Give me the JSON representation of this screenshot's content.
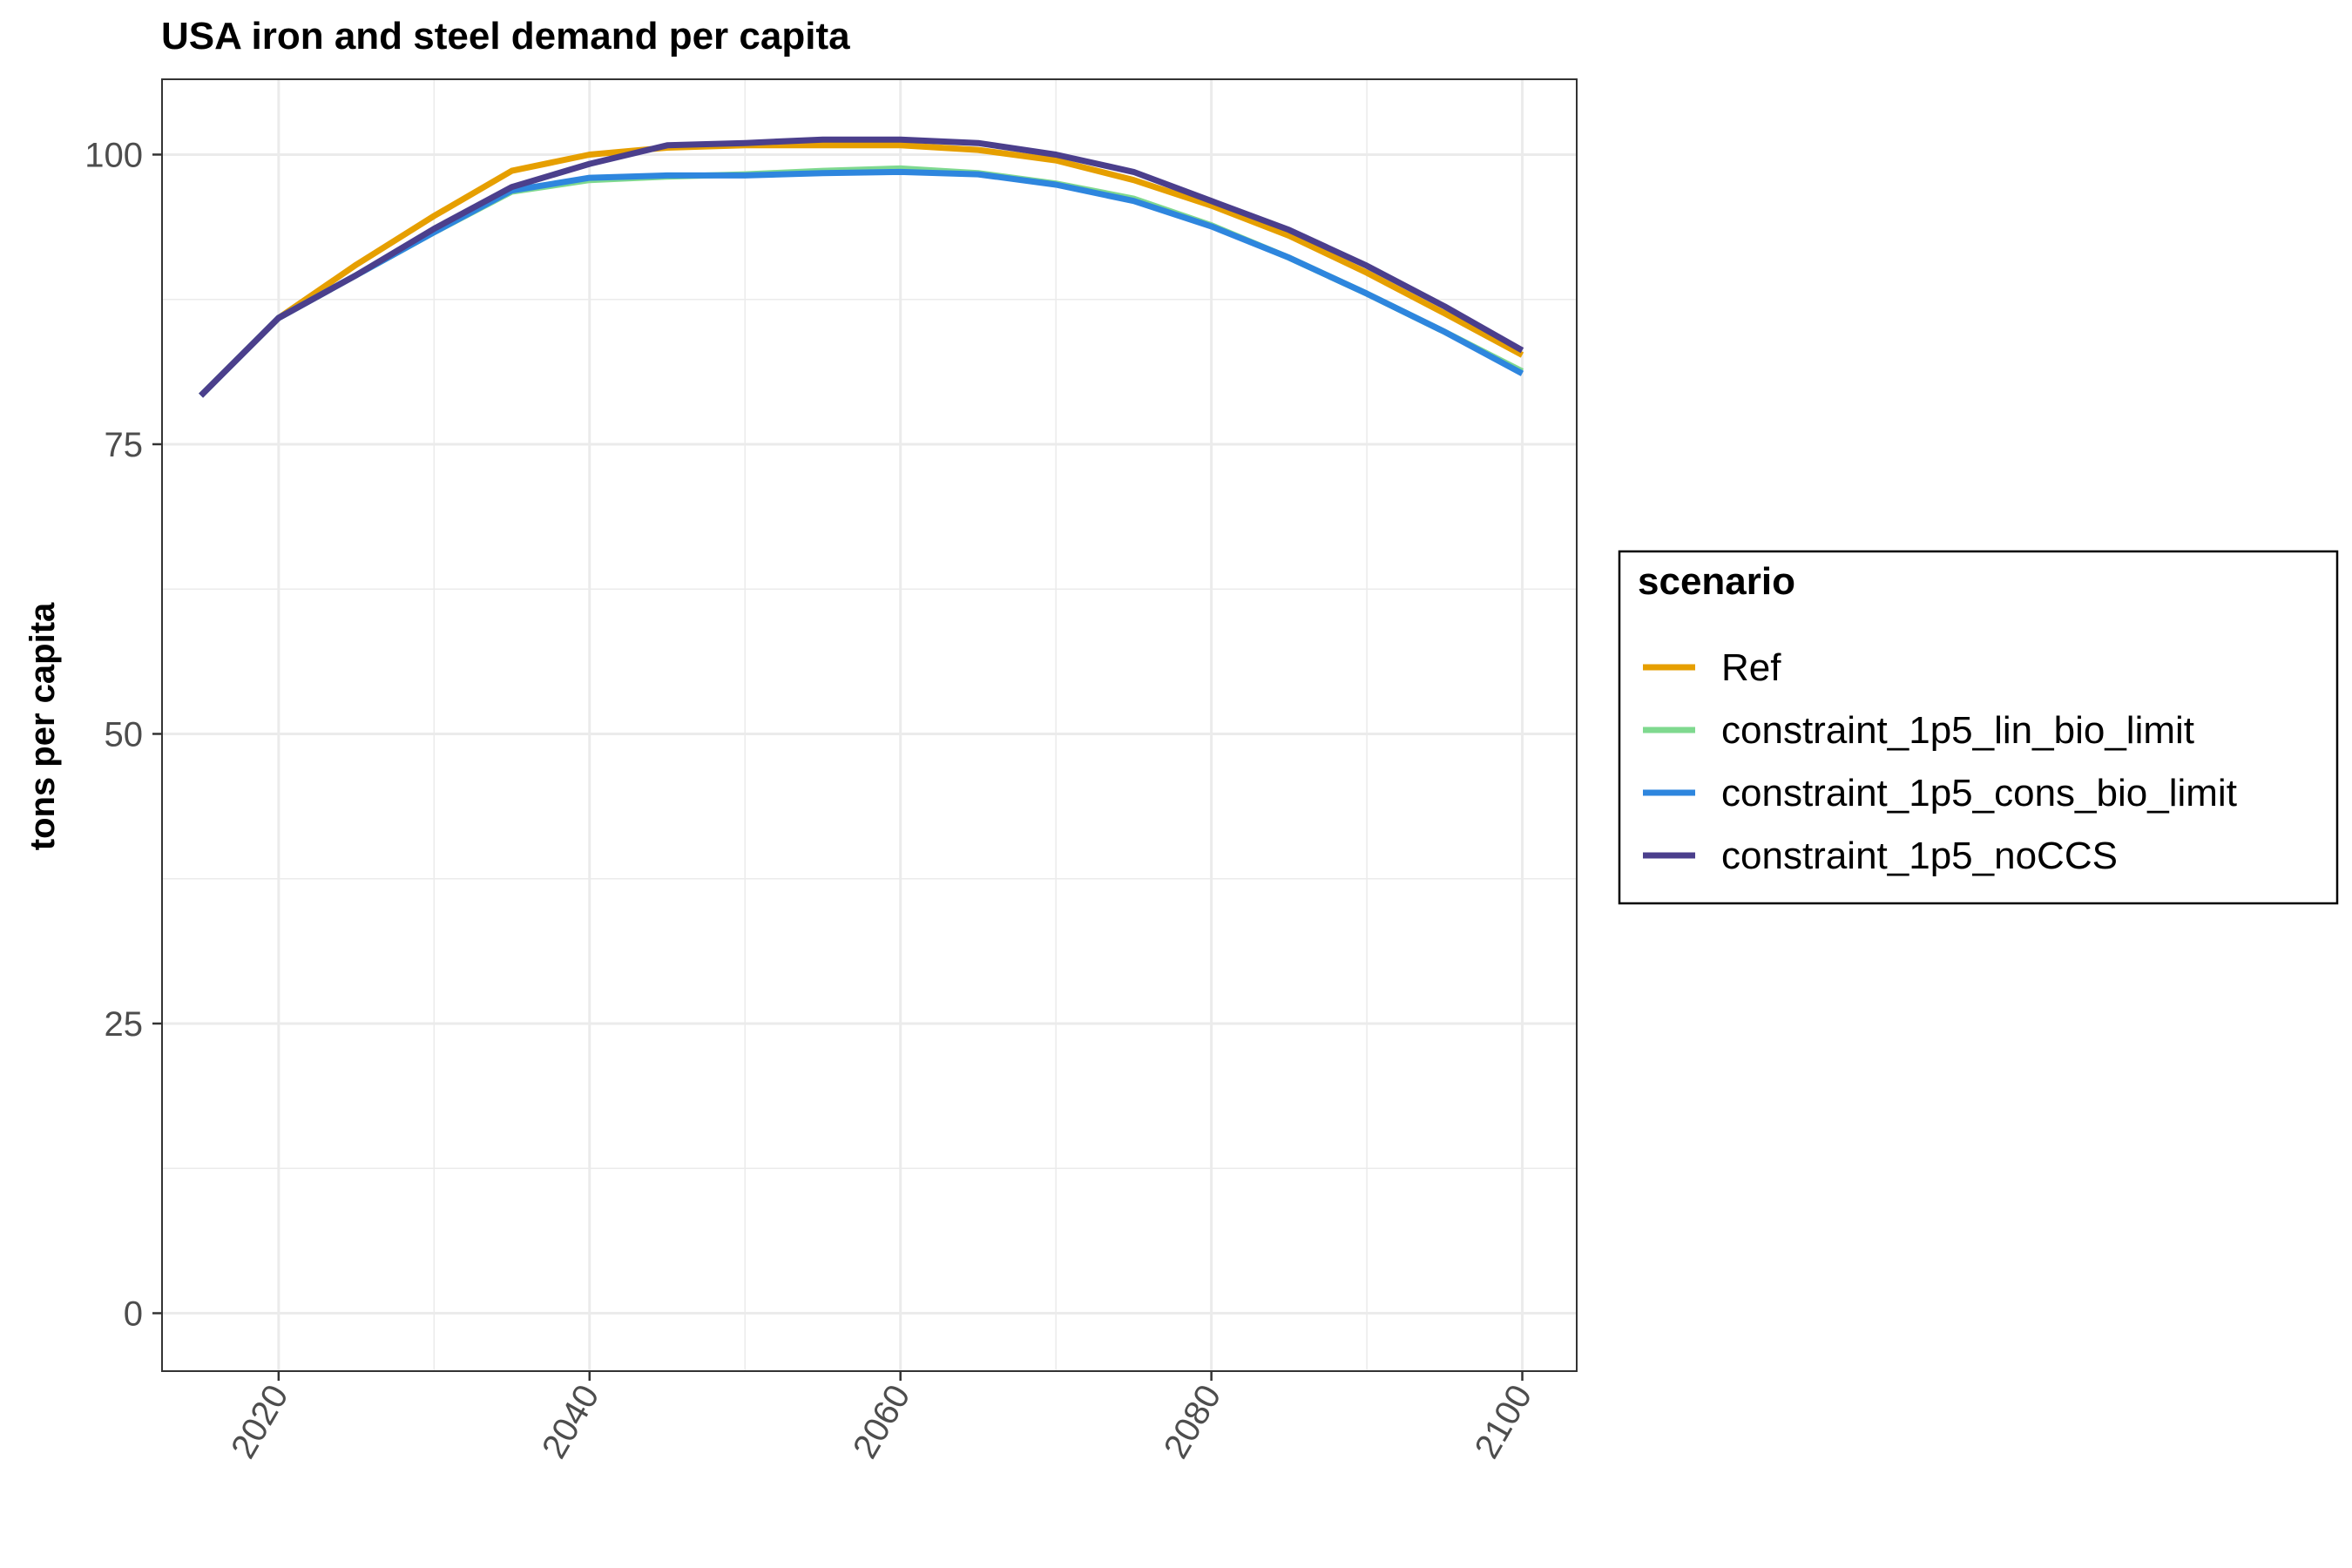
{
  "chart_data": {
    "type": "line",
    "title": "USA iron and steel demand per capita",
    "xlabel": "",
    "ylabel": "tons per capita",
    "xlim": [
      2012.5,
      2103.5
    ],
    "ylim": [
      -5,
      106.5
    ],
    "x_ticks": [
      2020,
      2040,
      2060,
      2080,
      2100
    ],
    "x_minor_ticks": [
      2030,
      2050,
      2070,
      2090
    ],
    "y_ticks": [
      0,
      25,
      50,
      75,
      100
    ],
    "y_minor_ticks": [
      12.5,
      37.5,
      62.5,
      87.5
    ],
    "x_tick_labels": [
      "2020",
      "2040",
      "2060",
      "2080",
      "2100"
    ],
    "y_tick_labels": [
      "0",
      "25",
      "50",
      "75",
      "100"
    ],
    "grid": true,
    "legend": {
      "title": "scenario",
      "position": "right"
    },
    "x": [
      2015,
      2020,
      2025,
      2030,
      2035,
      2040,
      2045,
      2050,
      2055,
      2060,
      2065,
      2070,
      2075,
      2080,
      2085,
      2090,
      2095,
      2100
    ],
    "series": [
      {
        "name": "Ref",
        "color": "#E69F00",
        "values": [
          79.2,
          85.9,
          90.5,
          94.7,
          98.6,
          100.0,
          100.6,
          100.8,
          100.8,
          100.8,
          100.4,
          99.5,
          97.8,
          95.6,
          93.0,
          89.8,
          86.3,
          82.7
        ]
      },
      {
        "name": "constraint_1p5_lin_bio_limit",
        "color": "#7FD98F",
        "values": [
          79.2,
          85.9,
          89.6,
          93.3,
          96.8,
          97.8,
          98.1,
          98.3,
          98.6,
          98.8,
          98.4,
          97.5,
          96.2,
          93.9,
          91.1,
          88.0,
          84.7,
          81.3
        ]
      },
      {
        "name": "constraint_1p5_cons_bio_limit",
        "color": "#2E86DE",
        "values": [
          79.2,
          85.9,
          89.6,
          93.3,
          96.9,
          98.0,
          98.2,
          98.2,
          98.4,
          98.5,
          98.3,
          97.4,
          96.0,
          93.8,
          91.1,
          88.0,
          84.7,
          81.1
        ]
      },
      {
        "name": "constraint_1p5_noCCS",
        "color": "#4B3F8C",
        "values": [
          79.2,
          85.9,
          89.6,
          93.6,
          97.2,
          99.2,
          100.8,
          101.0,
          101.3,
          101.3,
          101.0,
          100.0,
          98.5,
          96.0,
          93.5,
          90.4,
          86.9,
          83.1
        ]
      }
    ]
  }
}
